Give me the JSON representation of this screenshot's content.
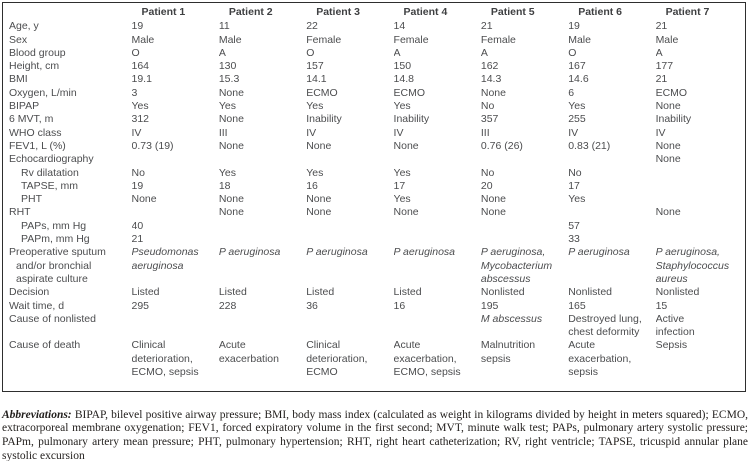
{
  "table": {
    "headers": [
      "",
      "Patient 1",
      "Patient 2",
      "Patient 3",
      "Patient 4",
      "Patient 5",
      "Patient 6",
      "Patient 7"
    ],
    "rows": [
      {
        "label": "Age, y",
        "values": [
          "19",
          "11",
          "22",
          "14",
          "21",
          "19",
          "21"
        ]
      },
      {
        "label": "Sex",
        "values": [
          "Male",
          "Male",
          "Female",
          "Female",
          "Female",
          "Male",
          "Male"
        ]
      },
      {
        "label": "Blood group",
        "values": [
          "O",
          "A",
          "O",
          "A",
          "A",
          "O",
          "A"
        ]
      },
      {
        "label": "Height, cm",
        "values": [
          "164",
          "130",
          "157",
          "150",
          "162",
          "167",
          "177"
        ]
      },
      {
        "label": "BMI",
        "values": [
          "19.1",
          "15.3",
          "14.1",
          "14.8",
          "14.3",
          "14.6",
          "21"
        ]
      },
      {
        "label": "Oxygen, L/min",
        "values": [
          "3",
          "None",
          "ECMO",
          "ECMO",
          "None",
          "6",
          "ECMO"
        ]
      },
      {
        "label": "BIPAP",
        "values": [
          "Yes",
          "Yes",
          "Yes",
          "Yes",
          "No",
          "Yes",
          "None"
        ]
      },
      {
        "label": "6 MVT, m",
        "values": [
          "312",
          "None",
          "Inability",
          "Inability",
          "357",
          "255",
          "Inability"
        ]
      },
      {
        "label": "WHO class",
        "values": [
          "IV",
          "III",
          "IV",
          "IV",
          "III",
          "IV",
          "IV"
        ]
      },
      {
        "label": "FEV1, L (%)",
        "values": [
          "0.73 (19)",
          "None",
          "None",
          "None",
          "0.76 (26)",
          "0.83 (21)",
          "None"
        ]
      },
      {
        "label": "Echocardiography",
        "values": [
          "",
          "",
          "",
          "",
          "",
          "",
          "None"
        ]
      },
      {
        "label": "Rv dilatation",
        "indent": 1,
        "values": [
          "No",
          "Yes",
          "Yes",
          "Yes",
          "No",
          "No",
          ""
        ]
      },
      {
        "label": "TAPSE, mm",
        "indent": 1,
        "values": [
          "19",
          "18",
          "16",
          "17",
          "20",
          "17",
          ""
        ]
      },
      {
        "label": "PHT",
        "indent": 1,
        "values": [
          "None",
          "None",
          "None",
          "Yes",
          "None",
          "Yes",
          ""
        ]
      },
      {
        "label": "RHT",
        "values": [
          "",
          "None",
          "None",
          "None",
          "None",
          "",
          "None"
        ]
      },
      {
        "label": "PAPs, mm Hg",
        "indent": 1,
        "values": [
          "40",
          "",
          "",
          "",
          "",
          "57",
          ""
        ]
      },
      {
        "label": "PAPm, mm Hg",
        "indent": 1,
        "values": [
          "21",
          "",
          "",
          "",
          "",
          "33",
          ""
        ]
      },
      {
        "label": "Preoperative sputum\nand/or bronchial\naspirate culture",
        "hang": true,
        "values": [
          {
            "text": "Pseudomonas\naeruginosa",
            "italic": true
          },
          {
            "text": "P aeruginosa",
            "italic": true
          },
          {
            "text": "P aeruginosa",
            "italic": true
          },
          {
            "text": "P aeruginosa",
            "italic": true
          },
          {
            "text": "P aeruginosa,\nMycobacterium\nabscessus",
            "italic": true
          },
          {
            "text": "P aeruginosa",
            "italic": true
          },
          {
            "text": "P aeruginosa,\nStaphylococcus\naureus",
            "italic": true
          }
        ]
      },
      {
        "label": "Decision",
        "values": [
          "Listed",
          "Listed",
          "Listed",
          "Listed",
          "Nonlisted",
          "Nonlisted",
          "Nonlisted"
        ]
      },
      {
        "label": "Wait time, d",
        "values": [
          "295",
          "228",
          "36",
          "16",
          "195",
          "165",
          "15"
        ]
      },
      {
        "label": "Cause of nonlisted",
        "values": [
          "",
          "",
          "",
          "",
          {
            "text": "M abscessus",
            "italic": true
          },
          "Destroyed lung,\nchest deformity",
          "Active\ninfection"
        ]
      },
      {
        "label": "Cause of death",
        "values": [
          "Clinical\ndeterioration,\nECMO, sepsis",
          "Acute\nexacerbation",
          "Clinical\ndeterioration,\nECMO",
          "Acute\nexacerbation,\nECMO, sepsis",
          "Malnutrition\nsepsis",
          "Acute\nexacerbation,\nsepsis",
          "Sepsis"
        ]
      }
    ]
  },
  "footnote": {
    "label": "Abbreviations:",
    "text": " BIPAP, bilevel positive airway pressure; BMI, body mass index (calculated as weight in kilograms divided by height in meters squared); ECMO, extracorporeal membrane oxygenation; FEV1, forced expiratory volume in the first second; MVT, minute walk test; PAPs, pulmonary artery systolic pressure; PAPm, pulmonary artery mean pressure; PHT, pulmonary hypertension; RHT, right heart catheterization; RV, right ventricle; TAPSE, tricuspid annular plane systolic excursion"
  },
  "colors": {
    "table_text": "#4c4d4f",
    "footnote_text": "#211e1c",
    "border": "#2e2e2e",
    "background": "#ffffff"
  }
}
